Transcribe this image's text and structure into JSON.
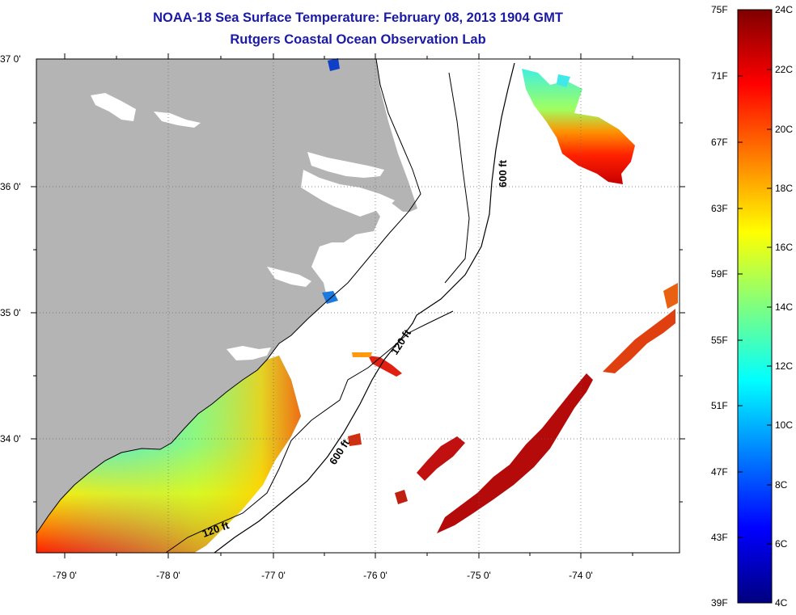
{
  "title": {
    "line1": "NOAA-18 Sea Surface Temperature:  February 08, 2013 1904 GMT",
    "line2": "Rutgers Coastal Ocean Observation Lab"
  },
  "latitude_labels": [
    "37 0'",
    "36 0'",
    "35 0'",
    "34 0'"
  ],
  "longitude_labels": [
    "-79 0'",
    "-78 0'",
    "-77 0'",
    "-76 0'",
    "-75 0'",
    "-74 0'"
  ],
  "contour_labels": [
    "600 ft",
    "120 ft",
    "600 ft",
    "120 ft"
  ],
  "colorbar": {
    "fahrenheit_labels": [
      "75F",
      "71F",
      "67F",
      "63F",
      "59F",
      "55F",
      "51F",
      "47F",
      "43F",
      "39F"
    ],
    "celsius_labels": [
      "24C",
      "22C",
      "20C",
      "18C",
      "16C",
      "14C",
      "12C",
      "10C",
      "8C",
      "6C",
      "4C"
    ],
    "gradient": [
      "#00007f",
      "#0000ff",
      "#007fff",
      "#00ffff",
      "#7fff7f",
      "#ffff00",
      "#ff7f00",
      "#ff0000",
      "#7f0000"
    ]
  },
  "colors": {
    "land": "#b4b4b4",
    "ocean_background": "#ffffff",
    "title_text": "#1a1aa6"
  }
}
